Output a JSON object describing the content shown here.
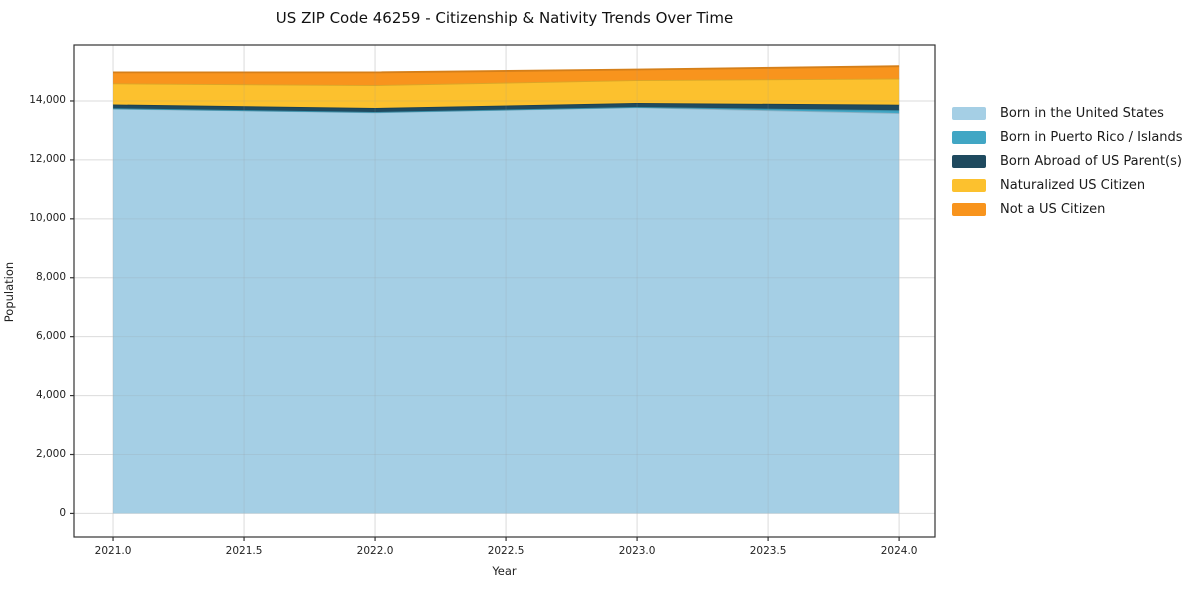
{
  "title": "US ZIP Code 46259 - Citizenship & Nativity Trends Over Time",
  "chart_data": {
    "type": "area",
    "stacked": true,
    "title": "US ZIP Code 46259 - Citizenship & Nativity Trends Over Time",
    "xlabel": "Year",
    "ylabel": "Population",
    "x": [
      2021,
      2022,
      2023,
      2024
    ],
    "series": [
      {
        "name": "Born in the United States",
        "color": "#a5cfe5",
        "values": [
          13740,
          13615,
          13785,
          13590
        ]
      },
      {
        "name": "Born in Puerto Rico / Islands",
        "color": "#41a6c4",
        "values": [
          10,
          10,
          10,
          95
        ]
      },
      {
        "name": "Born Abroad of US Parent(s)",
        "color": "#1f4a5f",
        "values": [
          130,
          135,
          135,
          190
        ]
      },
      {
        "name": "Naturalized US Citizen",
        "color": "#fcc12e",
        "values": [
          715,
          780,
          780,
          885
        ]
      },
      {
        "name": "Not a US Citizen",
        "color": "#f8941d",
        "values": [
          375,
          430,
          360,
          420
        ]
      }
    ],
    "totals": [
      14970,
      14970,
      15070,
      15180
    ],
    "x_ticks": [
      2021.0,
      2021.5,
      2022.0,
      2022.5,
      2023.0,
      2023.5,
      2024.0
    ],
    "x_tick_labels": [
      "2021.0",
      "2021.5",
      "2022.0",
      "2022.5",
      "2023.0",
      "2023.5",
      "2024.0"
    ],
    "y_ticks": [
      0,
      2000,
      4000,
      6000,
      8000,
      10000,
      12000,
      14000
    ],
    "y_tick_labels": [
      "0",
      "2,000",
      "4,000",
      "6,000",
      "8,000",
      "10,000",
      "12,000",
      "14,000"
    ],
    "xlim": [
      2020.851,
      2024.137
    ],
    "ylim": [
      -800,
      15900
    ],
    "grid": true,
    "legend_position": "right",
    "colors": {
      "grid": "#ebebeb",
      "grid_overlay": "rgba(150,150,150,0.18)",
      "spine": "#333333",
      "tick": "#333333"
    }
  }
}
